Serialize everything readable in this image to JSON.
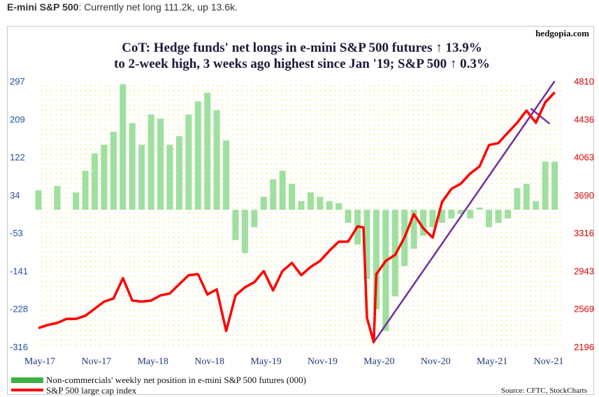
{
  "caption": {
    "bold": "E-mini S&P 500",
    "rest": ": Currently net long 111.2k, up 13.6k."
  },
  "watermark": "hedgopia.com",
  "title_line1": "CoT: Hedge funds' net longs in e-mini S&P 500 futures ↑ 13.9%",
  "title_line2": "to 2-week high, 3 weeks ago highest since Jan '19; S&P 500 ↑ 0.3%",
  "source": "Source: CFTC, StockCharts",
  "colors": {
    "bars": "#9fdf9f",
    "legend_bar": "#3cb043",
    "line": "#ff0000",
    "trend": "#7030a0",
    "plot_bg": "#ffffe0",
    "left_axis": "#1f4e9e",
    "right_axis": "#e00000"
  },
  "chart_data": {
    "type": "bar+line",
    "x_tick_labels": [
      "May-17",
      "Nov-17",
      "May-18",
      "Nov-18",
      "May-19",
      "Nov-19",
      "May-20",
      "Nov-20",
      "May-21",
      "Nov-21"
    ],
    "x_range": [
      "2017-04",
      "2021-11"
    ],
    "left_axis": {
      "ticks": [
        "297",
        "209",
        "122",
        "34",
        "-53",
        "-141",
        "-228",
        "-316"
      ],
      "range": [
        -316,
        297
      ]
    },
    "right_axis": {
      "ticks": [
        "4810",
        "4436",
        "4063",
        "3690",
        "3316",
        "2943",
        "2569",
        "2196"
      ],
      "range": [
        2196,
        4810
      ]
    },
    "grid": false,
    "legend_position": "bottom-left",
    "series": [
      {
        "name": "Non-commercials' weekly net position in e-mini S&P 500 futures (000)",
        "type": "bar",
        "axis": "left",
        "points": [
          [
            "2017-04",
            45
          ],
          [
            "2017-06",
            55
          ],
          [
            "2017-08",
            40
          ],
          [
            "2017-09",
            90
          ],
          [
            "2017-10",
            130
          ],
          [
            "2017-11",
            150
          ],
          [
            "2017-12",
            180
          ],
          [
            "2018-01",
            290
          ],
          [
            "2018-02",
            200
          ],
          [
            "2018-03",
            150
          ],
          [
            "2018-04",
            220
          ],
          [
            "2018-05",
            210
          ],
          [
            "2018-06",
            150
          ],
          [
            "2018-07",
            170
          ],
          [
            "2018-08",
            220
          ],
          [
            "2018-09",
            250
          ],
          [
            "2018-10",
            270
          ],
          [
            "2018-11",
            230
          ],
          [
            "2018-12",
            160
          ],
          [
            "2019-01",
            -70
          ],
          [
            "2019-02",
            -100
          ],
          [
            "2019-03",
            -40
          ],
          [
            "2019-04",
            30
          ],
          [
            "2019-05",
            70
          ],
          [
            "2019-06",
            90
          ],
          [
            "2019-07",
            60
          ],
          [
            "2019-08",
            20
          ],
          [
            "2019-09",
            40
          ],
          [
            "2019-10",
            30
          ],
          [
            "2019-11",
            20
          ],
          [
            "2019-12",
            15
          ],
          [
            "2020-01",
            -30
          ],
          [
            "2020-02",
            -80
          ],
          [
            "2020-03",
            -160
          ],
          [
            "2020-04",
            -230
          ],
          [
            "2020-05",
            -280
          ],
          [
            "2020-06",
            -200
          ],
          [
            "2020-07",
            -130
          ],
          [
            "2020-08",
            -90
          ],
          [
            "2020-09",
            -60
          ],
          [
            "2020-10",
            -40
          ],
          [
            "2020-11",
            -30
          ],
          [
            "2020-12",
            -20
          ],
          [
            "2021-01",
            -10
          ],
          [
            "2021-02",
            -20
          ],
          [
            "2021-03",
            5
          ],
          [
            "2021-04",
            -40
          ],
          [
            "2021-05",
            -30
          ],
          [
            "2021-06",
            -20
          ],
          [
            "2021-07",
            50
          ],
          [
            "2021-08",
            60
          ],
          [
            "2021-09",
            20
          ],
          [
            "2021-10",
            111
          ],
          [
            "2021-11",
            111
          ]
        ]
      },
      {
        "name": "S&P 500 large cap index",
        "type": "line",
        "axis": "right",
        "points": [
          [
            "2017-04",
            2380
          ],
          [
            "2017-05",
            2410
          ],
          [
            "2017-06",
            2430
          ],
          [
            "2017-07",
            2470
          ],
          [
            "2017-08",
            2470
          ],
          [
            "2017-09",
            2500
          ],
          [
            "2017-10",
            2570
          ],
          [
            "2017-11",
            2640
          ],
          [
            "2017-12",
            2670
          ],
          [
            "2018-01",
            2870
          ],
          [
            "2018-02",
            2650
          ],
          [
            "2018-03",
            2640
          ],
          [
            "2018-04",
            2650
          ],
          [
            "2018-05",
            2700
          ],
          [
            "2018-06",
            2720
          ],
          [
            "2018-07",
            2810
          ],
          [
            "2018-08",
            2900
          ],
          [
            "2018-09",
            2910
          ],
          [
            "2018-10",
            2710
          ],
          [
            "2018-11",
            2760
          ],
          [
            "2018-12",
            2350
          ],
          [
            "2019-01",
            2700
          ],
          [
            "2019-02",
            2780
          ],
          [
            "2019-03",
            2830
          ],
          [
            "2019-04",
            2940
          ],
          [
            "2019-05",
            2750
          ],
          [
            "2019-06",
            2940
          ],
          [
            "2019-07",
            3020
          ],
          [
            "2019-08",
            2900
          ],
          [
            "2019-09",
            2980
          ],
          [
            "2019-10",
            3040
          ],
          [
            "2019-11",
            3140
          ],
          [
            "2019-12",
            3230
          ],
          [
            "2020-01",
            3230
          ],
          [
            "2020-02",
            3380
          ],
          [
            "2020-02-20",
            3370
          ],
          [
            "2020-03",
            2480
          ],
          [
            "2020-03-23",
            2240
          ],
          [
            "2020-04",
            2910
          ],
          [
            "2020-05",
            3040
          ],
          [
            "2020-06",
            3100
          ],
          [
            "2020-07",
            3270
          ],
          [
            "2020-08",
            3500
          ],
          [
            "2020-09",
            3360
          ],
          [
            "2020-10",
            3270
          ],
          [
            "2020-11",
            3620
          ],
          [
            "2020-12",
            3750
          ],
          [
            "2021-01",
            3800
          ],
          [
            "2021-02",
            3900
          ],
          [
            "2021-03",
            3970
          ],
          [
            "2021-04",
            4180
          ],
          [
            "2021-05",
            4200
          ],
          [
            "2021-06",
            4300
          ],
          [
            "2021-07",
            4400
          ],
          [
            "2021-08",
            4520
          ],
          [
            "2021-09",
            4400
          ],
          [
            "2021-10",
            4600
          ],
          [
            "2021-11",
            4700
          ]
        ]
      }
    ],
    "annotations": [
      {
        "name": "rising trendline",
        "points": [
          [
            "2020-03-23",
            2240
          ],
          [
            "2021-11",
            4810
          ]
        ]
      },
      {
        "name": "short-term trendline",
        "points": [
          [
            "2021-08-15",
            4540
          ],
          [
            "2021-10-15",
            4390
          ]
        ]
      }
    ]
  }
}
